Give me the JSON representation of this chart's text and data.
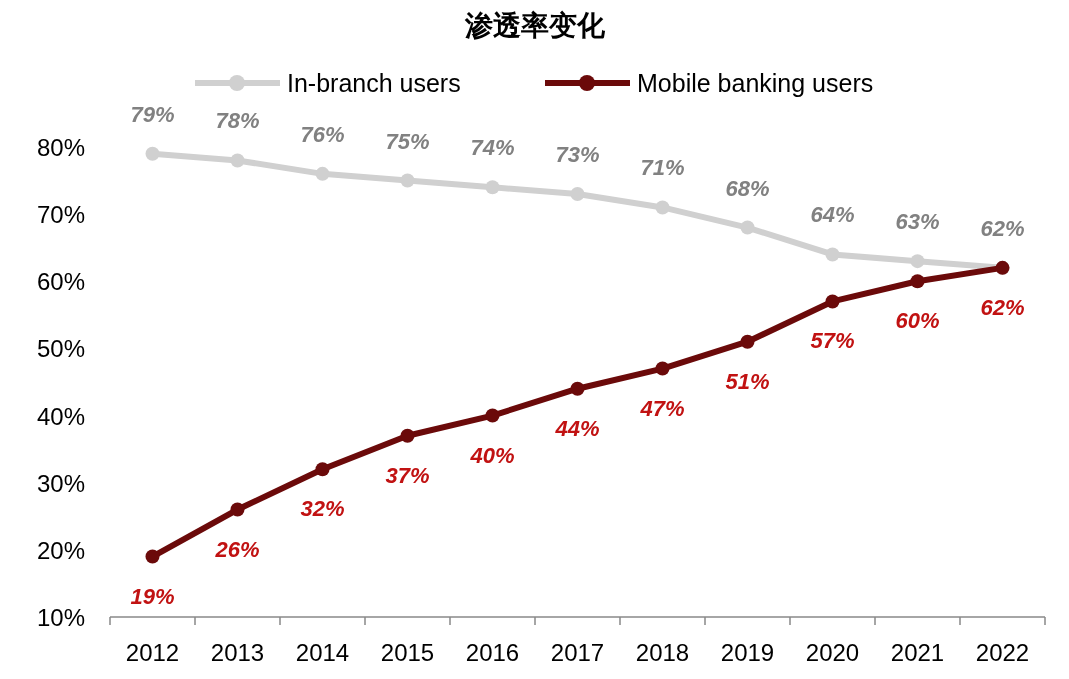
{
  "chart_data": {
    "type": "line",
    "title": "渗透率变化",
    "categories": [
      "2012",
      "2013",
      "2014",
      "2015",
      "2016",
      "2017",
      "2018",
      "2019",
      "2020",
      "2021",
      "2022"
    ],
    "series": [
      {
        "name": "In-branch users",
        "color": "#d0d0d0",
        "values": [
          79,
          78,
          76,
          75,
          74,
          73,
          71,
          68,
          64,
          63,
          62
        ],
        "value_labels": [
          "79%",
          "78%",
          "76%",
          "75%",
          "74%",
          "73%",
          "71%",
          "68%",
          "64%",
          "63%",
          "62%"
        ]
      },
      {
        "name": "Mobile banking users",
        "color": "#6b0a0a",
        "values": [
          19,
          26,
          32,
          37,
          40,
          44,
          47,
          51,
          57,
          60,
          62
        ],
        "value_labels": [
          "19%",
          "26%",
          "32%",
          "37%",
          "40%",
          "44%",
          "47%",
          "51%",
          "57%",
          "60%",
          "62%"
        ]
      }
    ],
    "ylim": [
      10,
      80
    ],
    "yticks": [
      {
        "value": 10,
        "label": "10%"
      },
      {
        "value": 20,
        "label": "20%"
      },
      {
        "value": 30,
        "label": "30%"
      },
      {
        "value": 40,
        "label": "40%"
      },
      {
        "value": 50,
        "label": "50%"
      },
      {
        "value": 60,
        "label": "60%"
      },
      {
        "value": 70,
        "label": "70%"
      },
      {
        "value": 80,
        "label": "80%"
      }
    ],
    "grid": false,
    "legend": "top",
    "marker": "circle",
    "line_style": "solid"
  }
}
